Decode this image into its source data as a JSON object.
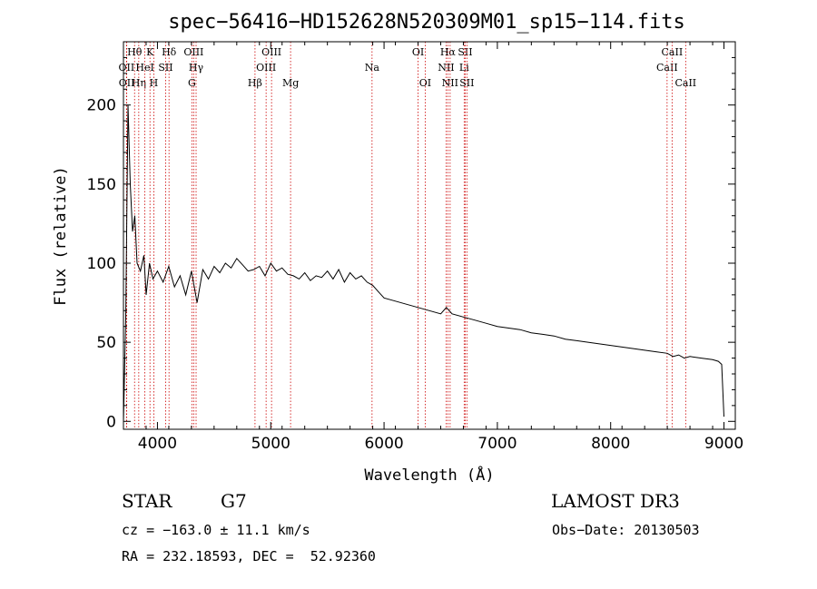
{
  "chart_data": {
    "type": "line",
    "title": "spec−56416−HD152628N520309M01_sp15−114.fits",
    "xlabel": "Wavelength (Å)",
    "ylabel": "Flux (relative)",
    "xlim": [
      3700,
      9100
    ],
    "ylim": [
      -5,
      240
    ],
    "x_ticks": [
      4000,
      5000,
      6000,
      7000,
      8000,
      9000
    ],
    "x_tick_labels": [
      "4000",
      "5000",
      "6000",
      "7000",
      "8000",
      "9000"
    ],
    "y_ticks": [
      0,
      50,
      100,
      150,
      200
    ],
    "y_tick_labels": [
      "0",
      "50",
      "100",
      "150",
      "200"
    ],
    "series": [
      {
        "name": "flux",
        "x": [
          3700,
          3720,
          3740,
          3760,
          3780,
          3800,
          3820,
          3850,
          3880,
          3900,
          3930,
          3960,
          4000,
          4050,
          4100,
          4150,
          4200,
          4250,
          4300,
          4350,
          4400,
          4450,
          4500,
          4550,
          4600,
          4650,
          4700,
          4750,
          4800,
          4850,
          4900,
          4950,
          5000,
          5050,
          5100,
          5150,
          5200,
          5250,
          5300,
          5350,
          5400,
          5450,
          5500,
          5550,
          5600,
          5650,
          5700,
          5750,
          5800,
          5850,
          5900,
          5950,
          6000,
          6100,
          6200,
          6300,
          6400,
          6500,
          6550,
          6600,
          6700,
          6800,
          6900,
          7000,
          7100,
          7200,
          7300,
          7400,
          7500,
          7600,
          7700,
          7800,
          7900,
          8000,
          8100,
          8200,
          8300,
          8400,
          8500,
          8550,
          8600,
          8650,
          8700,
          8800,
          8900,
          8950,
          8980,
          9000
        ],
        "y": [
          0,
          65,
          200,
          150,
          120,
          130,
          100,
          95,
          105,
          80,
          100,
          90,
          95,
          88,
          98,
          85,
          92,
          80,
          95,
          75,
          96,
          90,
          98,
          94,
          100,
          97,
          103,
          99,
          95,
          96,
          98,
          92,
          100,
          95,
          97,
          93,
          92,
          90,
          94,
          89,
          92,
          91,
          95,
          90,
          96,
          88,
          94,
          90,
          92,
          88,
          86,
          82,
          78,
          76,
          74,
          72,
          70,
          68,
          72,
          68,
          66,
          64,
          62,
          60,
          59,
          58,
          56,
          55,
          54,
          52,
          51,
          50,
          49,
          48,
          47,
          46,
          45,
          44,
          43,
          41,
          42,
          40,
          41,
          40,
          39,
          38,
          36,
          3
        ]
      }
    ],
    "line_markers": [
      {
        "label": "OII",
        "x": 3727,
        "row": 2
      },
      {
        "label": "OII",
        "x": 3729,
        "row": 3
      },
      {
        "label": "Hθ",
        "x": 3798,
        "row": 1
      },
      {
        "label": "Hη",
        "x": 3835,
        "row": 3
      },
      {
        "label": "HeI",
        "x": 3889,
        "row": 2
      },
      {
        "label": "K",
        "x": 3934,
        "row": 1
      },
      {
        "label": "H",
        "x": 3968,
        "row": 3
      },
      {
        "label": "SII",
        "x": 4072,
        "row": 2
      },
      {
        "label": "Hδ",
        "x": 4102,
        "row": 1
      },
      {
        "label": "G",
        "x": 4304,
        "row": 3
      },
      {
        "label": "OIII",
        "x": 4320,
        "row": 1
      },
      {
        "label": "Hγ",
        "x": 4341,
        "row": 2
      },
      {
        "label": "Hβ",
        "x": 4861,
        "row": 3
      },
      {
        "label": "OIII",
        "x": 4959,
        "row": 2
      },
      {
        "label": "OIII",
        "x": 5007,
        "row": 1
      },
      {
        "label": "Mg",
        "x": 5175,
        "row": 3
      },
      {
        "label": "Na",
        "x": 5894,
        "row": 2
      },
      {
        "label": "OI",
        "x": 6300,
        "row": 1
      },
      {
        "label": "OI",
        "x": 6363,
        "row": 3
      },
      {
        "label": "NII",
        "x": 6548,
        "row": 2
      },
      {
        "label": "Hα",
        "x": 6563,
        "row": 1
      },
      {
        "label": "NII",
        "x": 6583,
        "row": 3
      },
      {
        "label": "Li",
        "x": 6707,
        "row": 2
      },
      {
        "label": "SII",
        "x": 6716,
        "row": 1
      },
      {
        "label": "SII",
        "x": 6731,
        "row": 3
      },
      {
        "label": "CaII",
        "x": 8498,
        "row": 2
      },
      {
        "label": "CaII",
        "x": 8542,
        "row": 1
      },
      {
        "label": "CaII",
        "x": 8662,
        "row": 3
      }
    ],
    "line_color": "#000000",
    "marker_color": "#cc0000"
  },
  "info": {
    "object_class": "STAR",
    "subclass": "G7",
    "survey": "LAMOST DR3",
    "redshift": "cz = −163.0 ± 11.1 km/s",
    "obs_date": "Obs−Date: 20130503",
    "coordinates": "RA = 232.18593, DEC =  52.92360"
  }
}
